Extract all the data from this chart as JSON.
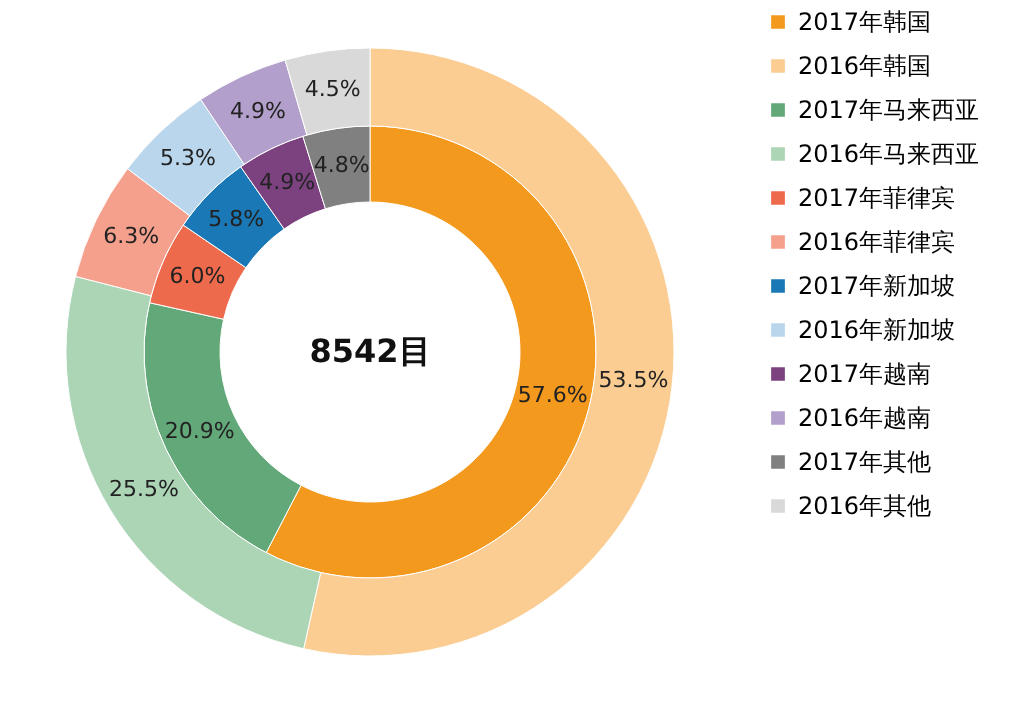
{
  "chart_data": {
    "type": "donut",
    "legend": "right",
    "data_labels": true,
    "annotations": [
      "8542目"
    ],
    "categories": [
      "2017年韩国",
      "2016年韩国",
      "2017年马来西亚",
      "2016年马来西亚",
      "2017年菲律宾",
      "2016年菲律宾",
      "2017年新加坡",
      "2016年新加坡",
      "2017年越南",
      "2016年越南",
      "2017年其他",
      "2016年其他"
    ],
    "colors": [
      "#f39a1e",
      "#fbcd92",
      "#62a878",
      "#acd5b6",
      "#ee6a4c",
      "#f4a08c",
      "#1a78b6",
      "#bad6ec",
      "#7c4280",
      "#b39fcb",
      "#808080",
      "#d9d9d9"
    ],
    "series": [
      {
        "values": [
          57.6,
          null,
          20.9,
          null,
          6.0,
          null,
          5.8,
          null,
          4.9,
          null,
          4.8,
          null
        ],
        "value_labels": [
          "57.6%",
          null,
          "20.9%",
          null,
          "6.0%",
          null,
          "5.8%",
          null,
          "4.9%",
          null,
          "4.8%",
          null
        ]
      },
      {
        "values": [
          null,
          53.5,
          null,
          25.5,
          null,
          6.3,
          null,
          5.3,
          null,
          4.9,
          null,
          4.5
        ],
        "value_labels": [
          null,
          "53.5%",
          null,
          "25.5%",
          null,
          "6.3%",
          null,
          "5.3%",
          null,
          "4.9%",
          null,
          "4.5%"
        ]
      }
    ]
  }
}
